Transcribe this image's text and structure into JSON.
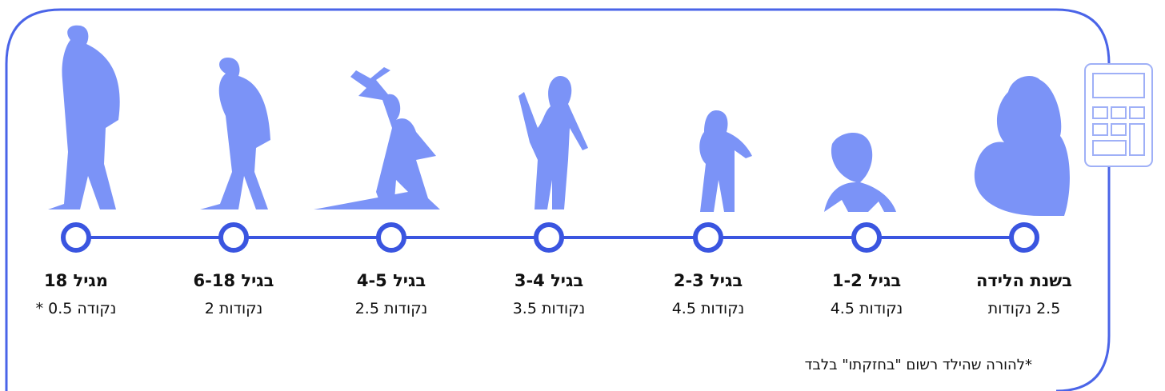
{
  "stages": [
    {
      "label": "בשנת הלידה",
      "points": "2.5 נקודות"
    },
    {
      "label": "בגיל 1-2",
      "points": "נקודות 4.5"
    },
    {
      "label": "בגיל 2-3",
      "points": "נקודות 4.5"
    },
    {
      "label": "בגיל 3-4",
      "points": "נקודות 3.5"
    },
    {
      "label": "בגיל 4-5",
      "points": "נקודות 2.5"
    },
    {
      "label": "בגיל 6-18",
      "points": "נקודות 2"
    },
    {
      "label": "מגיל 18",
      "points": "נקודה 0.5 *"
    }
  ],
  "footnote": "*להורה שהילד רשום \"בחזקתו\" בלבד"
}
